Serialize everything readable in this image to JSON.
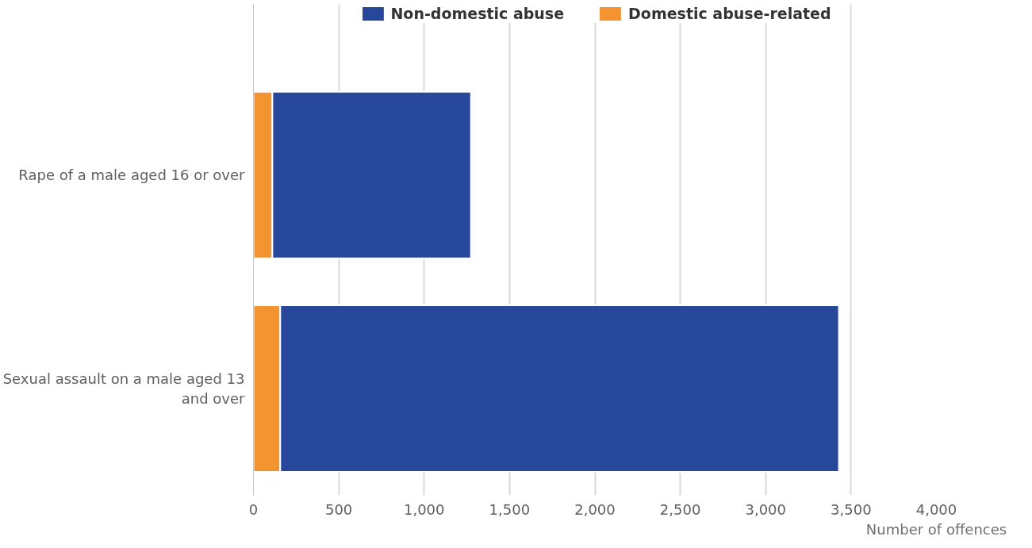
{
  "chart_data": {
    "type": "bar",
    "orientation": "horizontal",
    "stacked": true,
    "categories": [
      "Rape of a male aged 16 or over",
      "Sexual assault on a male aged 13 and over"
    ],
    "series": [
      {
        "name": "Domestic abuse-related",
        "color": "#f39431",
        "values": [
          111,
          157
        ]
      },
      {
        "name": "Non-domestic abuse",
        "color": "#27479a",
        "values": [
          1163,
          3272
        ]
      }
    ],
    "xlabel": "Number of offences",
    "xlim": [
      0,
      4000
    ],
    "xticks": [
      {
        "value": 0,
        "label": "0"
      },
      {
        "value": 500,
        "label": "500"
      },
      {
        "value": 1000,
        "label": "1,000"
      },
      {
        "value": 1500,
        "label": "1,500"
      },
      {
        "value": 2000,
        "label": "2,000"
      },
      {
        "value": 2500,
        "label": "2,500"
      },
      {
        "value": 3000,
        "label": "3,000"
      },
      {
        "value": 3500,
        "label": "3,500"
      },
      {
        "value": 4000,
        "label": "4,000"
      }
    ],
    "grid": "x",
    "legend": "top"
  }
}
